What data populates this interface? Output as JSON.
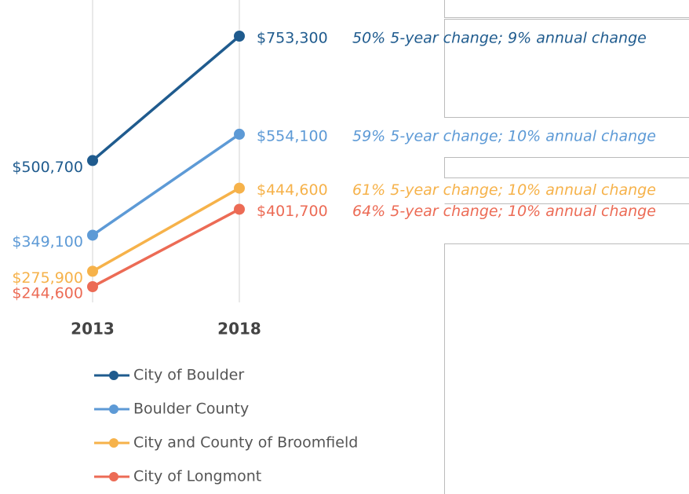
{
  "chart_data": {
    "type": "line",
    "categories": [
      "2013",
      "2018"
    ],
    "series": [
      {
        "name": "City of Boulder",
        "color": "#1f5b8e",
        "values": [
          500700,
          753300
        ],
        "value_labels": [
          "$500,700",
          "$753,300"
        ],
        "annotation": "50% 5-year change; 9% annual change"
      },
      {
        "name": "Boulder County",
        "color": "#5d9ad6",
        "values": [
          349100,
          554100
        ],
        "value_labels": [
          "$349,100",
          "$554,100"
        ],
        "annotation": "59% 5-year change; 10% annual change"
      },
      {
        "name": "City and County of Broomfield",
        "color": "#f6b24a",
        "values": [
          275900,
          444600
        ],
        "value_labels": [
          "$275,900",
          "$444,600"
        ],
        "annotation": "61% 5-year change; 10% annual change"
      },
      {
        "name": "City of Longmont",
        "color": "#ec6b55",
        "values": [
          244600,
          401700
        ],
        "value_labels": [
          "$244,600",
          "$401,700"
        ],
        "annotation": "64% 5-year change; 10% annual change"
      }
    ]
  }
}
